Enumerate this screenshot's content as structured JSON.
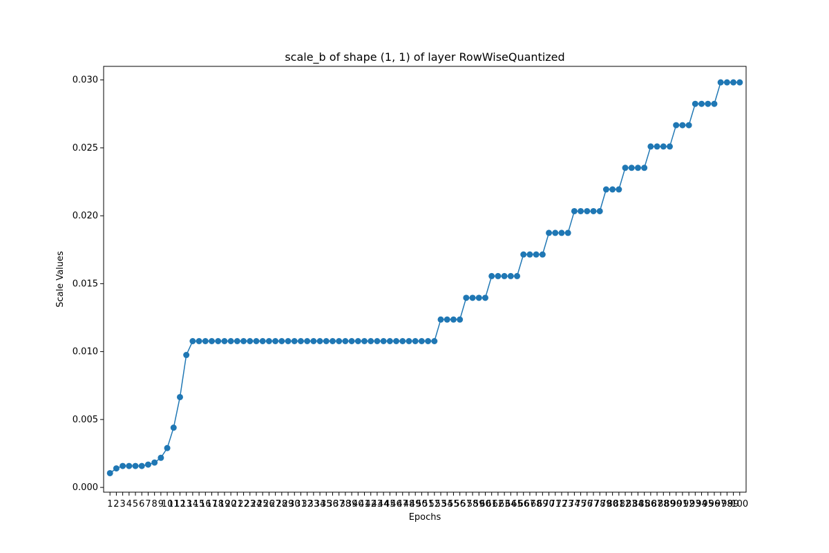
{
  "chart_data": {
    "type": "line",
    "title": "scale_b of shape (1, 1) of layer RowWiseQuantized",
    "xlabel": "Epochs",
    "ylabel": "Scale Values",
    "x": [
      1,
      2,
      3,
      4,
      5,
      6,
      7,
      8,
      9,
      10,
      11,
      12,
      13,
      14,
      15,
      16,
      17,
      18,
      19,
      20,
      21,
      22,
      23,
      24,
      25,
      26,
      27,
      28,
      29,
      30,
      31,
      32,
      33,
      34,
      35,
      36,
      37,
      38,
      39,
      40,
      41,
      42,
      43,
      44,
      45,
      46,
      47,
      48,
      49,
      50,
      51,
      52,
      53,
      54,
      55,
      56,
      57,
      58,
      59,
      60,
      61,
      62,
      63,
      64,
      65,
      66,
      67,
      68,
      69,
      70,
      71,
      72,
      73,
      74,
      75,
      76,
      77,
      78,
      79,
      80,
      81,
      82,
      83,
      84,
      85,
      86,
      87,
      88,
      89,
      90,
      91,
      92,
      93,
      94,
      95,
      96,
      97,
      98,
      99,
      100
    ],
    "series": [
      {
        "values": [
          0.00105,
          0.0014,
          0.00158,
          0.00158,
          0.00158,
          0.00158,
          0.00168,
          0.00183,
          0.00218,
          0.0029,
          0.0044,
          0.00665,
          0.00975,
          0.01077,
          0.01077,
          0.01077,
          0.01077,
          0.01077,
          0.01077,
          0.01077,
          0.01077,
          0.01077,
          0.01077,
          0.01077,
          0.01077,
          0.01077,
          0.01077,
          0.01077,
          0.01077,
          0.01077,
          0.01077,
          0.01077,
          0.01077,
          0.01077,
          0.01077,
          0.01077,
          0.01077,
          0.01077,
          0.01077,
          0.01077,
          0.01077,
          0.01077,
          0.01077,
          0.01077,
          0.01077,
          0.01077,
          0.01077,
          0.01077,
          0.01077,
          0.01077,
          0.01077,
          0.01077,
          0.01236,
          0.01236,
          0.01236,
          0.01236,
          0.01396,
          0.01396,
          0.01396,
          0.01396,
          0.01556,
          0.01556,
          0.01556,
          0.01556,
          0.01556,
          0.01715,
          0.01715,
          0.01715,
          0.01715,
          0.01874,
          0.01874,
          0.01874,
          0.01874,
          0.02034,
          0.02034,
          0.02034,
          0.02034,
          0.02034,
          0.02194,
          0.02194,
          0.02194,
          0.02353,
          0.02353,
          0.02353,
          0.02353,
          0.0251,
          0.0251,
          0.0251,
          0.0251,
          0.02667,
          0.02667,
          0.02667,
          0.02824,
          0.02824,
          0.02824,
          0.02824,
          0.02982,
          0.02982,
          0.02982,
          0.02982
        ]
      }
    ],
    "yticks": [
      "0.000",
      "0.005",
      "0.010",
      "0.015",
      "0.020",
      "0.025",
      "0.030"
    ],
    "ylim": [
      -0.00035,
      0.031
    ],
    "grid": false,
    "legend": "none",
    "line_color": "#1f77b4"
  }
}
